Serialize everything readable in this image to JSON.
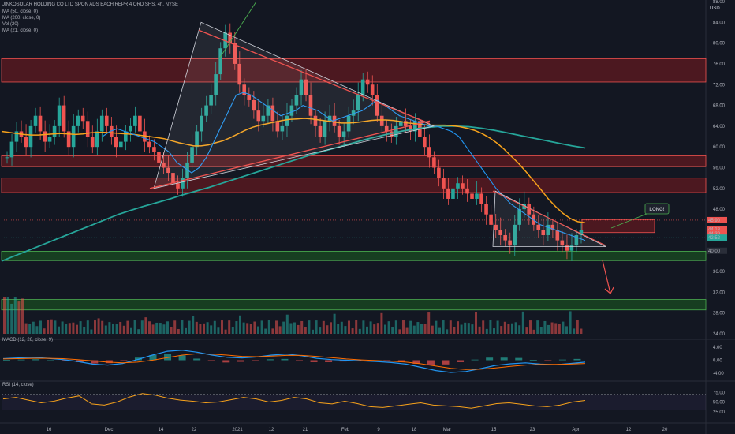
{
  "header": {
    "title": "JINKOSOLAR HOLDING CO LTD SPON ADS EACH REPR 4 ORD SHS, 4h, NYSE",
    "currency": "USD",
    "indicators": [
      "MA (50, close, 0)",
      "MA (200, close, 0)",
      "Vol (20)",
      "MA (21, close, 0)"
    ]
  },
  "panes": {
    "macd_label": "MACD (12, 26, close, 9)",
    "rsi_label": "RSI (14, close)"
  },
  "annotations": {
    "long_label": "LONG!"
  },
  "colors": {
    "background": "#131722",
    "up": "#26a69a",
    "down": "#ef5350",
    "ma50": "#f7a21b",
    "ma200": "#26a69a",
    "ma21": "#2196f3",
    "resistance_zone": "#7b1a1f",
    "support_zone": "#1b5e20",
    "rsi": "#f7a21b"
  },
  "chart_data": [
    {
      "type": "candlestick",
      "title": "JINKOSOLAR HOLDING CO LTD SPON ADS EACH REPR 4 ORD SHS, 4h, NYSE",
      "ylabel": "USD",
      "ylim": [
        24,
        88
      ],
      "y_ticks": [
        "88.00",
        "84.00",
        "80.00",
        "76.00",
        "72.00",
        "68.00",
        "64.00",
        "60.00",
        "56.00",
        "52.00",
        "48.00",
        "44.00",
        "40.00",
        "36.00",
        "32.00",
        "28.00",
        "24.00"
      ],
      "x_ticks": [
        "16",
        "Dec",
        "14",
        "22",
        "2021",
        "12",
        "21",
        "Feb",
        "9",
        "18",
        "Mar",
        "15",
        "23",
        "Apr",
        "12",
        "20"
      ],
      "price_labels": [
        {
          "value": "45.90",
          "color": "#ef5350"
        },
        {
          "value": "44.18",
          "color": "#ef5350"
        },
        {
          "value": "44.39",
          "color": "#ef5350"
        },
        {
          "value": "42.52",
          "color": "#26a69a"
        },
        {
          "value": "40.00",
          "color": "#2a2e39"
        }
      ],
      "zones": [
        {
          "name": "resistance",
          "from": 72.5,
          "to": 77.0
        },
        {
          "name": "resistance",
          "from": 56.2,
          "to": 58.3
        },
        {
          "name": "resistance",
          "from": 51.2,
          "to": 54.0
        },
        {
          "name": "resistance-small",
          "from": 43.5,
          "to": 46.0
        },
        {
          "name": "support",
          "from": 38.1,
          "to": 39.9
        },
        {
          "name": "support",
          "from": 28.6,
          "to": 30.6
        }
      ],
      "series_close": [
        58,
        61,
        63,
        62,
        60,
        64,
        66,
        63,
        61,
        62,
        64,
        68,
        63,
        60,
        64,
        66,
        65,
        62,
        60,
        63,
        66,
        64,
        62,
        60,
        61,
        63,
        64,
        66,
        63,
        61,
        60,
        59,
        57,
        56,
        55,
        53,
        52,
        54,
        57,
        60,
        63,
        66,
        68,
        70,
        74,
        79,
        82,
        80,
        76,
        72,
        70,
        69,
        67,
        65,
        66,
        68,
        65,
        63,
        64,
        66,
        68,
        70,
        73,
        70,
        66,
        64,
        62,
        65,
        66,
        64,
        62,
        63,
        66,
        67,
        70,
        73,
        72,
        70,
        66,
        64,
        63,
        62,
        64,
        65,
        64,
        63,
        65,
        62,
        60,
        58,
        56,
        54,
        52,
        50,
        52,
        53,
        52,
        51,
        50,
        51,
        49,
        47,
        45,
        44,
        43,
        42,
        41,
        45,
        48,
        49,
        47,
        45,
        44,
        43,
        45,
        44,
        42,
        41,
        40,
        41,
        43,
        44
      ],
      "series_ma50": [
        63,
        62.8,
        62.6,
        62.4,
        62.3,
        62.3,
        62.4,
        62.5,
        62.6,
        62.5,
        62.4,
        62.5,
        62.7,
        62.8,
        62.8,
        62.7,
        62.6,
        62.5,
        62.4,
        62.2,
        62.0,
        61.8,
        61.6,
        61.2,
        60.8,
        60.5,
        60.2,
        60.2,
        60.4,
        60.8,
        61.2,
        61.8,
        62.5,
        63.2,
        63.8,
        64.2,
        64.5,
        64.8,
        65.1,
        65.3,
        65.4,
        65.5,
        65.4,
        65.2,
        65.0,
        64.8,
        64.6,
        64.6,
        64.7,
        64.9,
        65.1,
        65.2,
        65.2,
        65.1,
        64.9,
        64.6,
        64.5,
        64.3,
        64.2,
        64.2,
        64.2,
        64.1,
        63.9,
        63.6,
        63.2,
        62.6,
        61.8,
        60.8,
        59.6,
        58.2,
        56.8,
        55.2,
        53.5,
        51.8,
        50.0,
        48.5,
        47.2,
        46.2,
        45.6,
        45.4
      ],
      "series_ma200": [
        38,
        39,
        40,
        41,
        42,
        43,
        44,
        45,
        46,
        47,
        47.8,
        48.6,
        49.3,
        50,
        50.8,
        51.5,
        52.2,
        53,
        53.8,
        54.6,
        55.4,
        56.2,
        57,
        57.8,
        58.6,
        59.3,
        60,
        60.7,
        61.4,
        62,
        62.6,
        63.1,
        63.5,
        63.8,
        64,
        64,
        63.9,
        63.6,
        63.2,
        62.7,
        62.2,
        61.7,
        61.2,
        60.7,
        60.2,
        59.8
      ],
      "series_ma21": [
        62,
        63,
        63.5,
        63,
        62.5,
        62,
        61.5,
        61,
        60,
        59,
        57,
        56,
        55,
        56,
        58,
        61,
        64,
        67,
        70,
        70.5,
        70,
        69,
        68,
        67,
        66,
        66.5,
        67,
        68,
        67.5,
        67,
        66,
        65,
        65.5,
        66,
        66.5,
        67,
        68,
        69,
        68,
        67,
        66,
        65.5,
        65,
        64.5,
        64,
        64,
        63.5,
        63,
        62,
        60,
        58,
        56,
        54,
        52,
        50.5,
        49,
        48,
        47,
        46,
        45,
        44.5,
        44,
        43.5,
        43,
        42.5,
        42
      ],
      "macd": [
        0.5,
        0.7,
        0.9,
        0.6,
        0.2,
        -0.4,
        -1.2,
        -1.5,
        -1.0,
        0.2,
        1.6,
        2.8,
        3.1,
        2.5,
        1.6,
        0.9,
        0.7,
        1.0,
        1.6,
        1.9,
        1.4,
        0.6,
        0.2,
        0.0,
        -0.2,
        -0.4,
        -0.7,
        -1.2,
        -2.2,
        -3.2,
        -3.8,
        -3.5,
        -2.6,
        -1.6,
        -1.1,
        -0.8,
        -1.2,
        -1.4,
        -1.0,
        -0.6
      ],
      "macd_signal": [
        0.4,
        0.5,
        0.6,
        0.6,
        0.5,
        0.2,
        -0.2,
        -0.6,
        -0.8,
        -0.6,
        0.0,
        0.8,
        1.6,
        2.0,
        1.9,
        1.6,
        1.2,
        1.1,
        1.3,
        1.5,
        1.5,
        1.2,
        0.8,
        0.4,
        0.1,
        -0.1,
        -0.3,
        -0.6,
        -1.1,
        -1.8,
        -2.5,
        -2.9,
        -2.8,
        -2.4,
        -1.9,
        -1.5,
        -1.3,
        -1.3,
        -1.2,
        -1.0
      ],
      "macd_ticks": [
        "4.00",
        "0.00",
        "-4.00"
      ],
      "rsi": [
        58,
        62,
        55,
        48,
        52,
        60,
        66,
        45,
        42,
        50,
        63,
        72,
        68,
        60,
        55,
        52,
        48,
        50,
        56,
        62,
        58,
        50,
        54,
        62,
        58,
        48,
        45,
        52,
        46,
        38,
        36,
        40,
        44,
        48,
        42,
        40,
        38,
        34,
        40,
        46,
        48,
        44,
        40,
        38,
        42,
        50,
        54
      ],
      "rsi_ticks": [
        "75.00",
        "50.00",
        "25.00"
      ]
    }
  ]
}
